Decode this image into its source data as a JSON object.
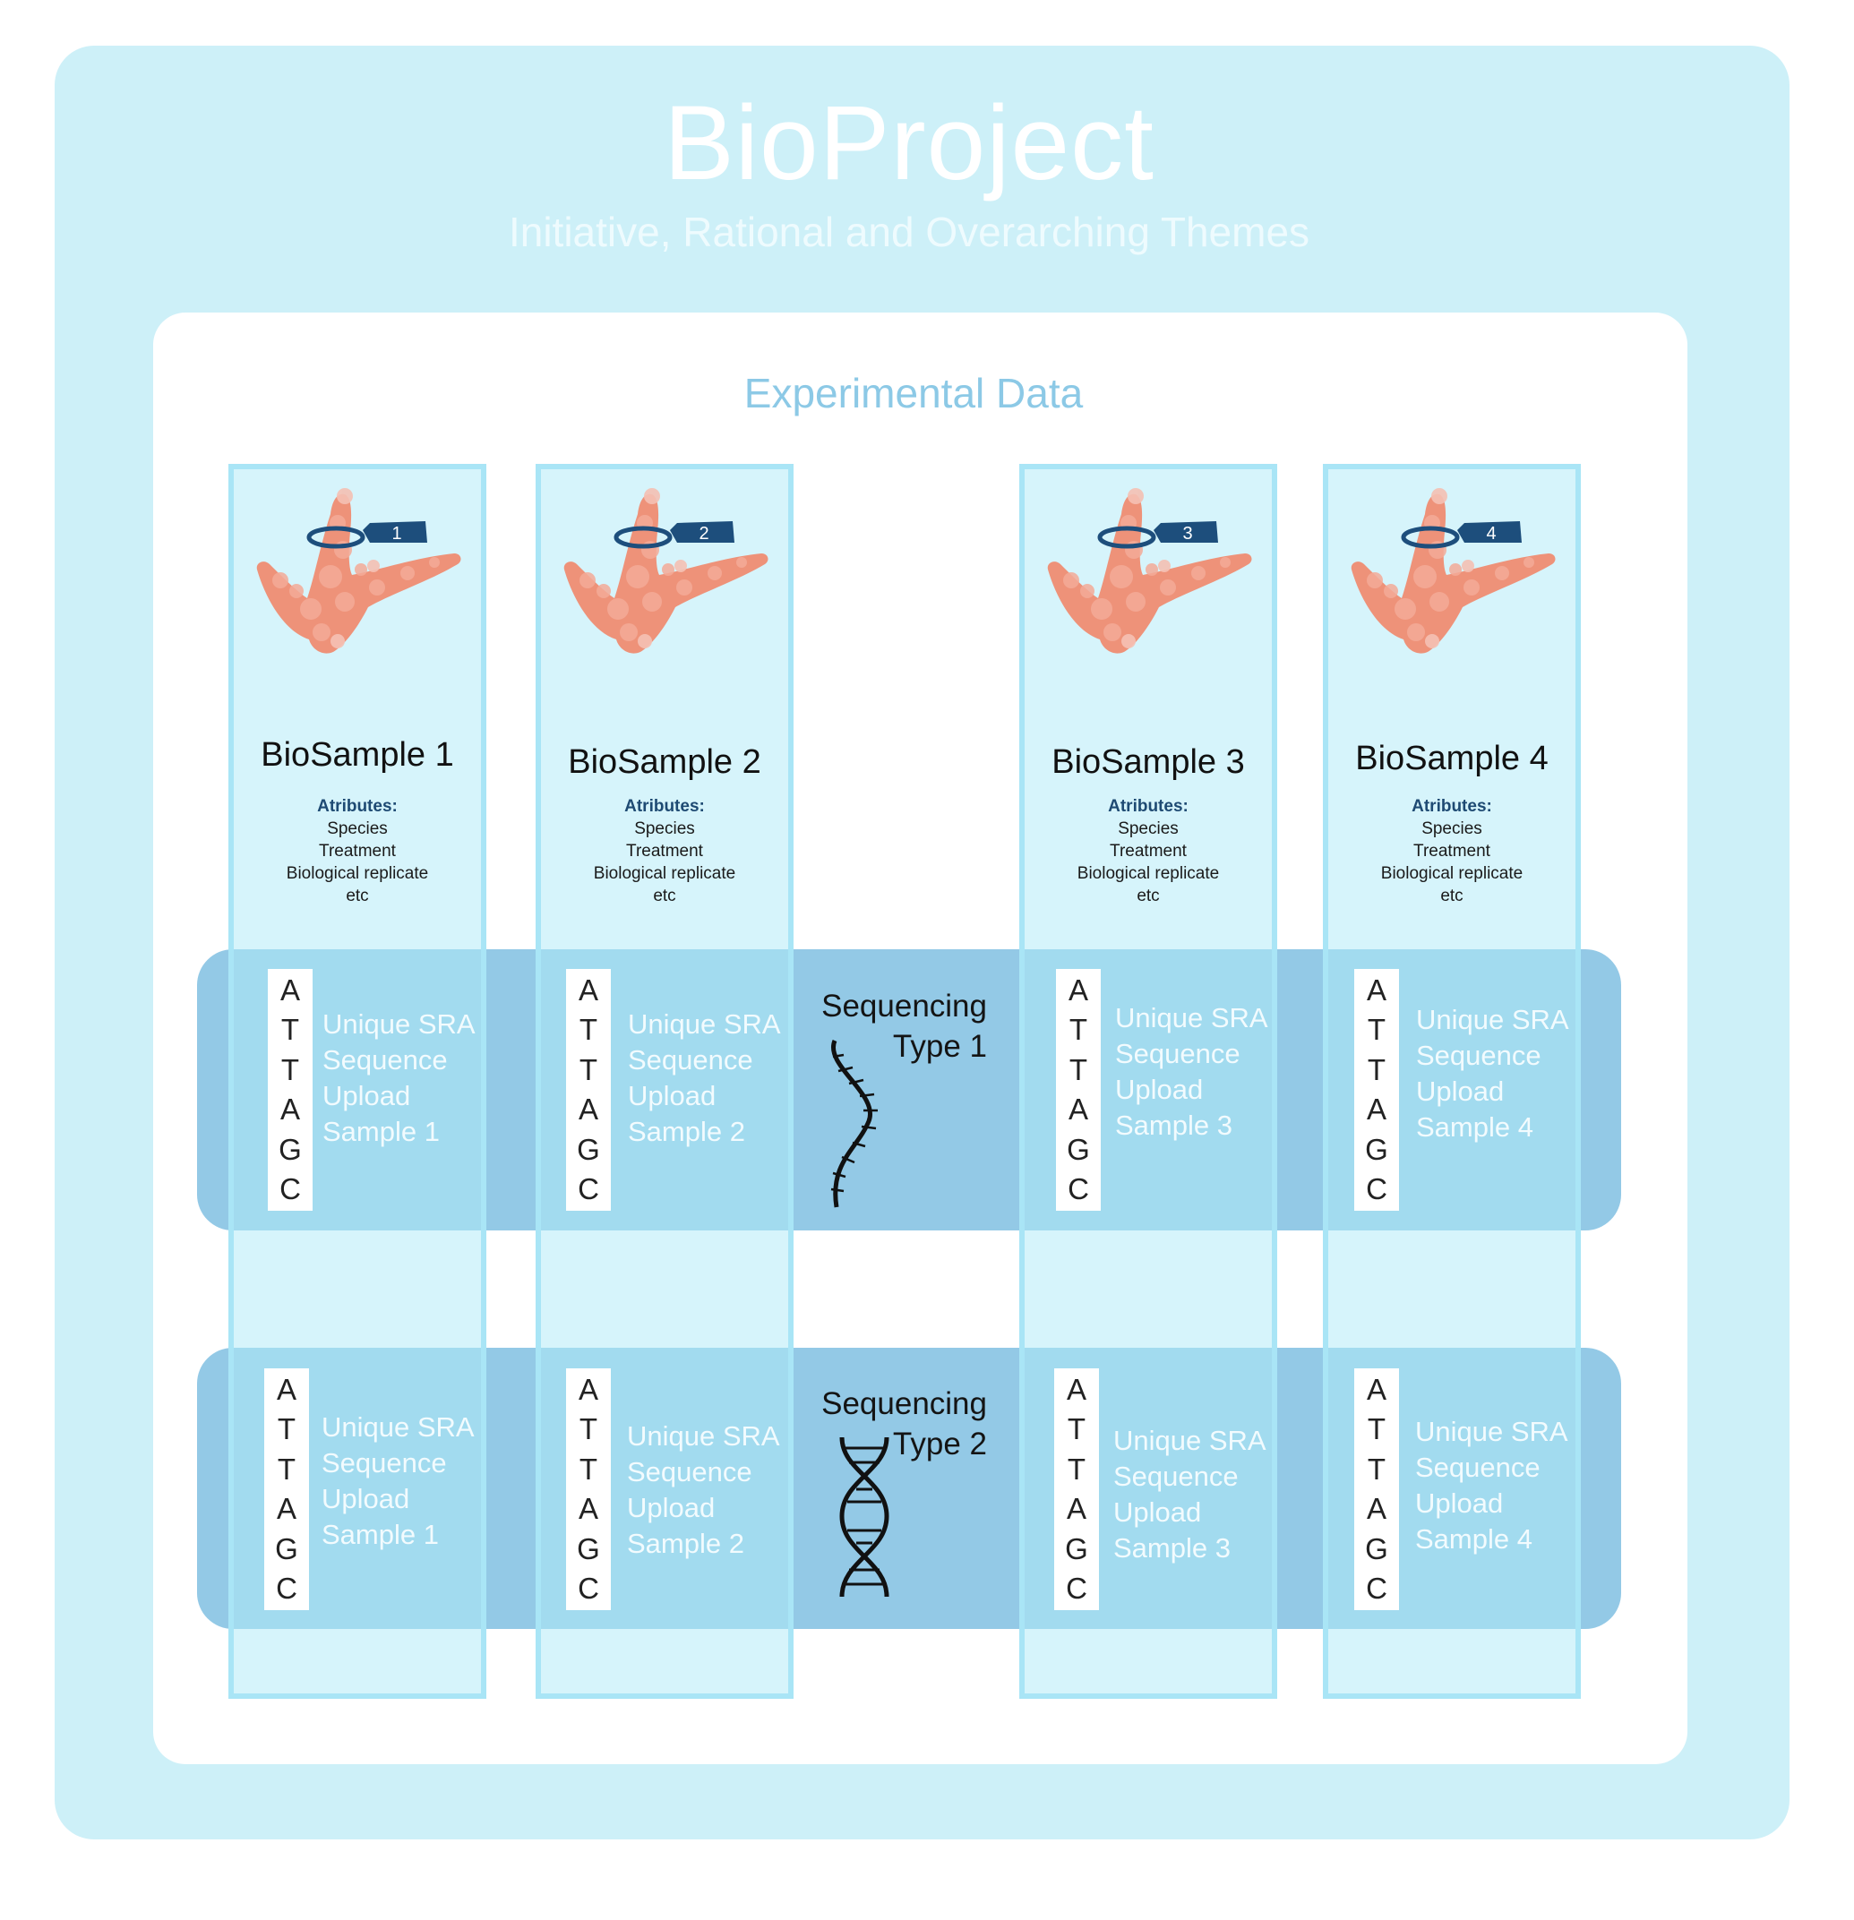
{
  "project": {
    "title": "BioProject",
    "subtitle": "Initiative, Rational and Overarching Themes"
  },
  "section_title": "Experimental Data",
  "attributes": {
    "header": "Atributes:",
    "items": [
      "Species",
      "Treatment",
      "Biological replicate",
      "etc"
    ]
  },
  "sequence_letters": [
    "A",
    "T",
    "T",
    "A",
    "G",
    "C"
  ],
  "upload_lines": [
    "Unique SRA",
    "Sequence",
    "Upload"
  ],
  "samples": [
    {
      "name": "BioSample 1",
      "tag": "1",
      "sample_label": "Sample 1"
    },
    {
      "name": "BioSample 2",
      "tag": "2",
      "sample_label": "Sample 2"
    },
    {
      "name": "BioSample 3",
      "tag": "3",
      "sample_label": "Sample 3"
    },
    {
      "name": "BioSample 4",
      "tag": "4",
      "sample_label": "Sample 4"
    }
  ],
  "sequencing": [
    {
      "line1": "Sequencing",
      "line2": "Type 1",
      "icon": "single-helix-icon"
    },
    {
      "line1": "Sequencing",
      "line2": "Type 2",
      "icon": "double-helix-icon"
    }
  ],
  "colors": {
    "outer": "#cdf0f8",
    "band": "#93c9e6",
    "column_border": "#a9e5f6",
    "organism": "#ee9279",
    "tag": "#1d4e7c"
  }
}
